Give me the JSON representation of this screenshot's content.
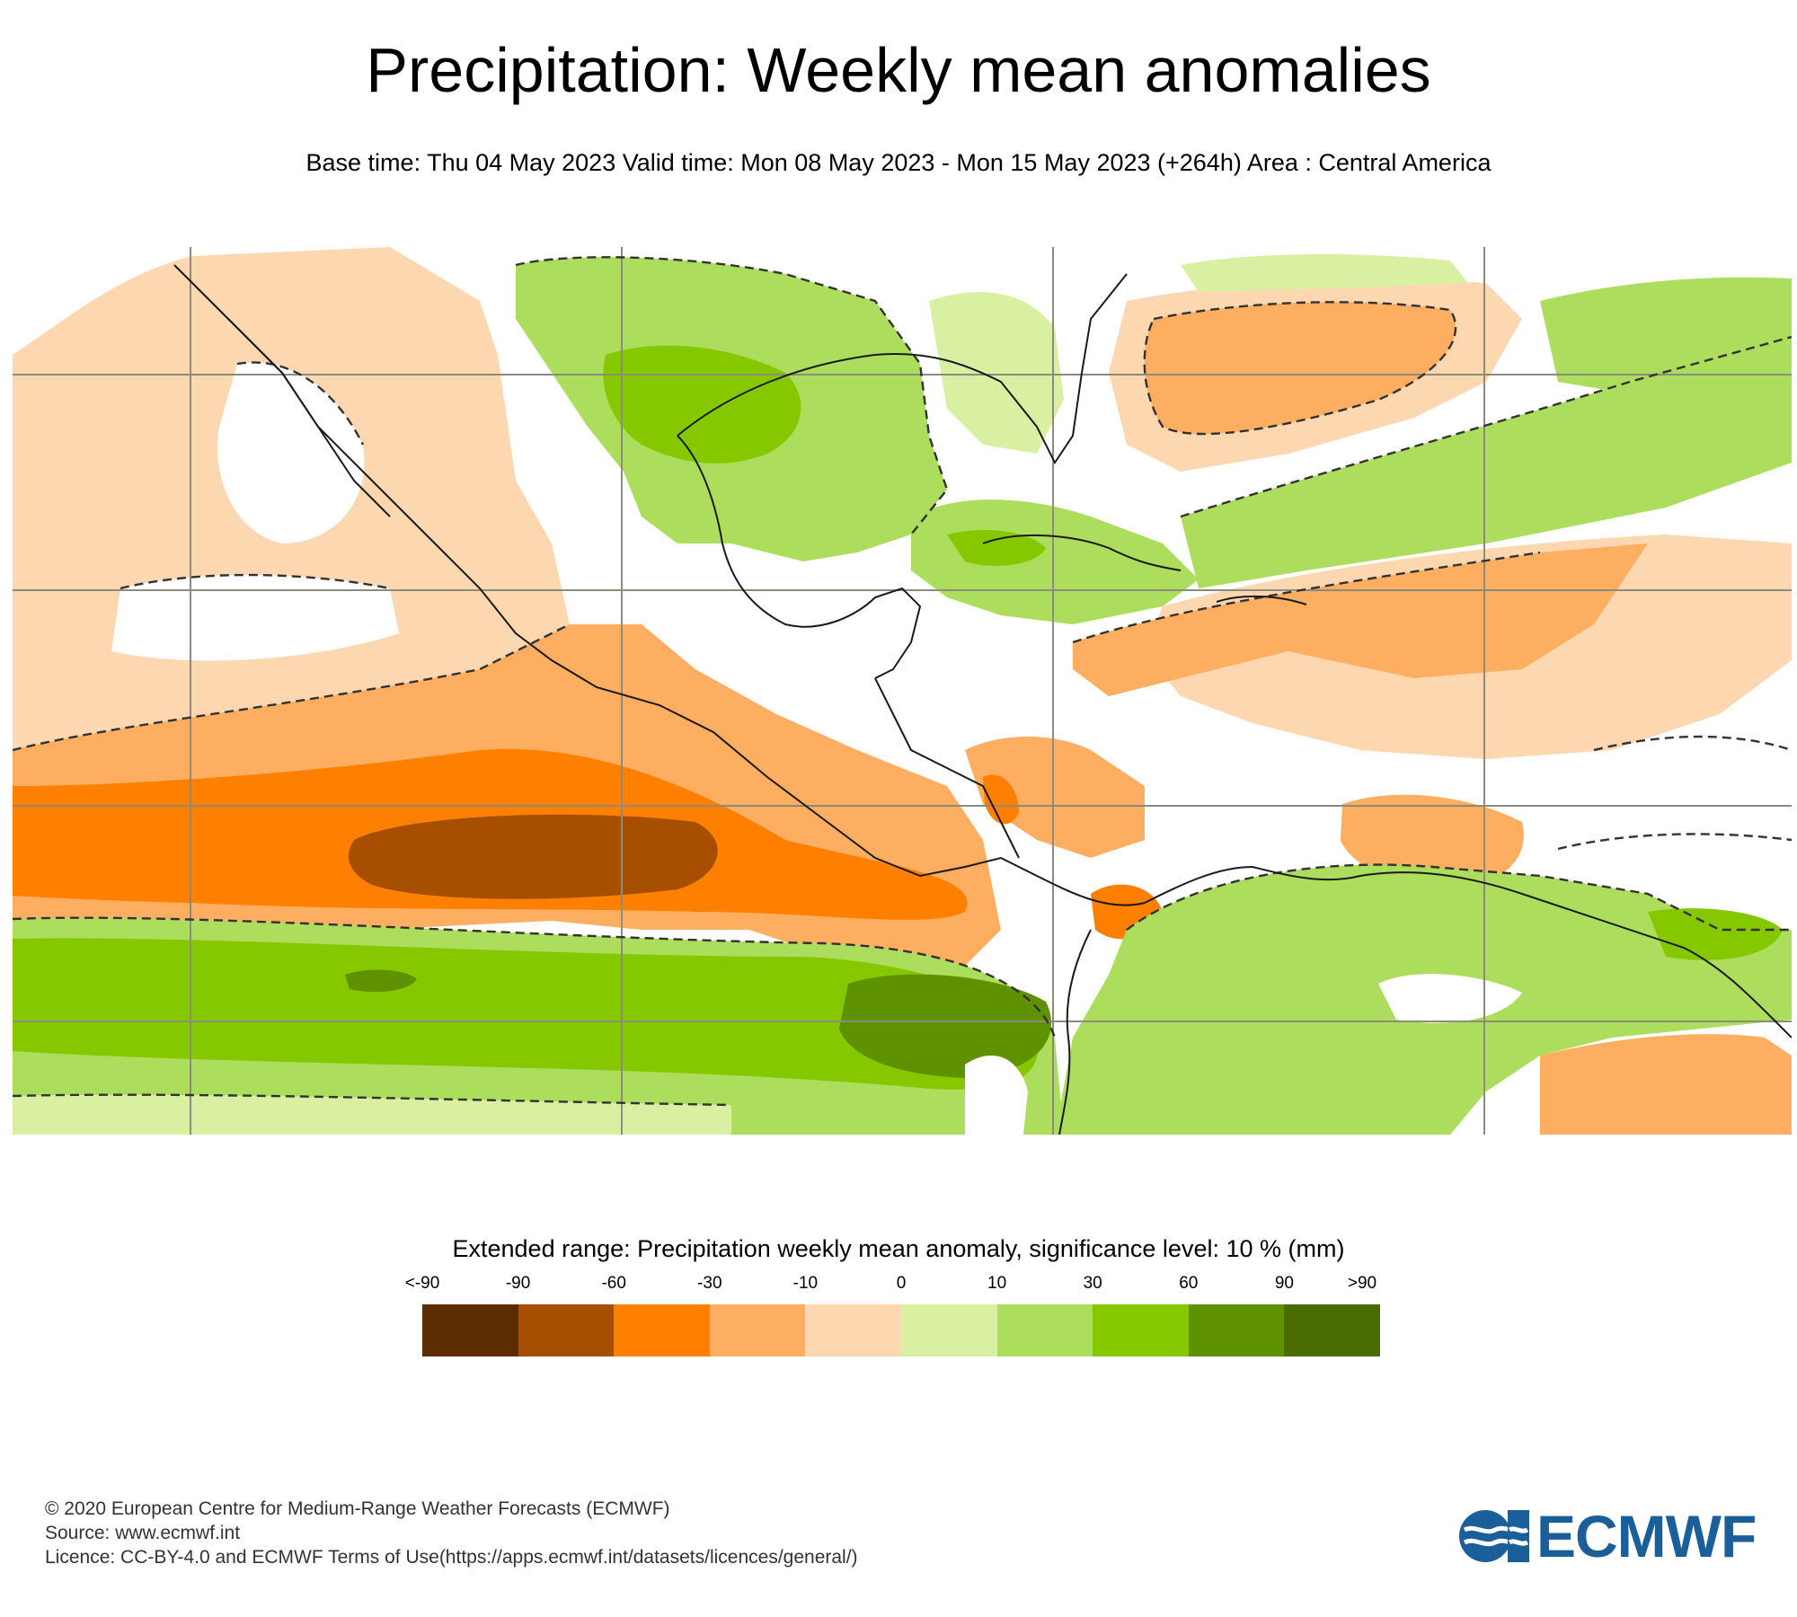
{
  "header": {
    "title": "Precipitation: Weekly mean anomalies",
    "subtitle": "Base time: Thu 04 May 2023 Valid time: Mon 08 May 2023 - Mon 15 May 2023 (+264h) Area : Central America"
  },
  "map": {
    "area": "Central America",
    "colors": {
      "land_outline": "#1a1a1a",
      "grid": "#8c8c7c",
      "significance_contour": "#333333"
    }
  },
  "legend": {
    "title": "Extended range: Precipitation weekly mean anomaly, significance level: 10 % (mm)",
    "labels": [
      "<-90",
      "-90",
      "-60",
      "-30",
      "-10",
      "0",
      "10",
      "30",
      "60",
      "90",
      ">90"
    ],
    "colors": [
      "#5c2c00",
      "#a64f00",
      "#ff7f00",
      "#fdae61",
      "#fdd7b0",
      "#d9f0a3",
      "#addd5c",
      "#86c800",
      "#5f9200",
      "#4a6c00"
    ]
  },
  "credits": {
    "line1": "© 2020 European Centre for Medium-Range Weather Forecasts (ECMWF)",
    "line2": "Source: www.ecmwf.int",
    "line3": "Licence: CC-BY-4.0 and ECMWF Terms of Use(https://apps.ecmwf.int/datasets/licences/general/)"
  },
  "logo": {
    "text": "ECMWF",
    "color": "#1a5e9a"
  }
}
